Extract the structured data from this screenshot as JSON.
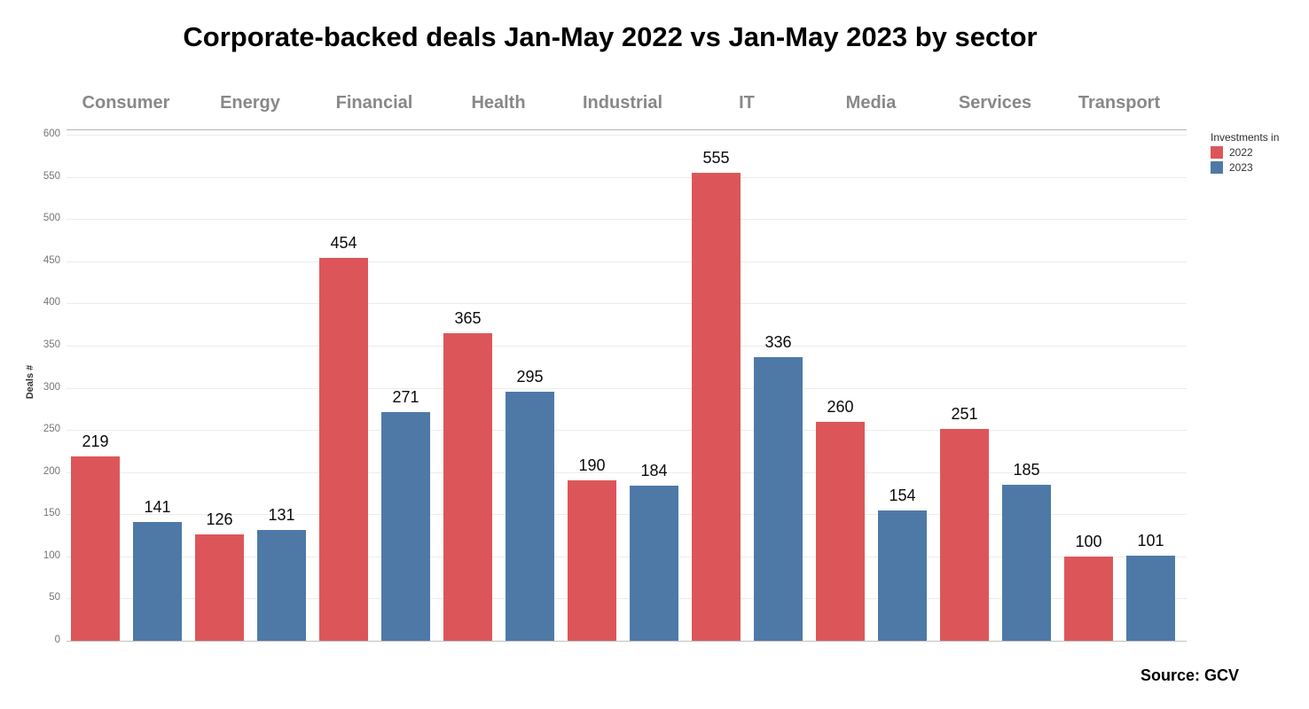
{
  "title": "Corporate-backed deals Jan-May 2022 vs Jan-May 2023 by sector",
  "source_note": "Source: GCV",
  "legend": {
    "title": "Investments in",
    "items": [
      {
        "label": "2022",
        "color": "#DC5659"
      },
      {
        "label": "2023",
        "color": "#4E79A7"
      }
    ]
  },
  "chart_data": {
    "type": "bar",
    "title": "Corporate-backed deals Jan-May 2022 vs Jan-May 2023 by sector",
    "categories": [
      "Consumer",
      "Energy",
      "Financial",
      "Health",
      "Industrial",
      "IT",
      "Media",
      "Services",
      "Transport"
    ],
    "series": [
      {
        "name": "2022",
        "color": "#DC5659",
        "values": [
          219,
          126,
          454,
          365,
          190,
          555,
          260,
          251,
          100
        ]
      },
      {
        "name": "2023",
        "color": "#4E79A7",
        "values": [
          141,
          131,
          271,
          295,
          184,
          336,
          154,
          185,
          101
        ]
      }
    ],
    "xlabel": "",
    "ylabel": "Deals #",
    "ylim": [
      0,
      600
    ],
    "yticks": [
      0,
      50,
      100,
      150,
      200,
      250,
      300,
      350,
      400,
      450,
      500,
      550,
      600
    ],
    "grid": true,
    "legend_position": "top-right",
    "value_labels": true
  }
}
